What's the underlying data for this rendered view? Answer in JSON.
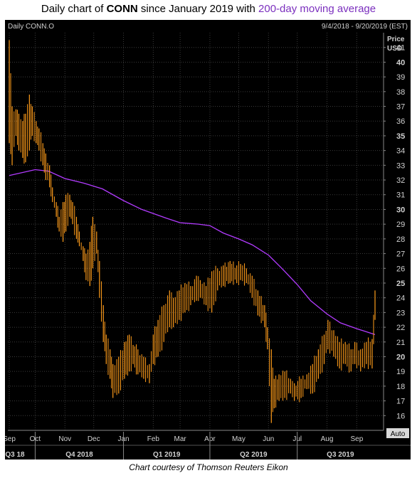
{
  "header": {
    "prefix": "Daily chart of ",
    "ticker": "CONN",
    "middle": " since January 2019 with ",
    "ma_text": "200-day moving average"
  },
  "footer": {
    "caption": "Chart courtesy of Thomson Reuters Eikon"
  },
  "colors": {
    "price": "#ff9c1a",
    "moving_average": "#b23bff",
    "background": "#000000",
    "grid": "#3a3a3a",
    "text": "#c8c8c8"
  },
  "chart_data": {
    "type": "line",
    "instrument": "Daily CONN.O",
    "date_range": "9/4/2018 - 9/20/2019 (EST)",
    "ylabel": "Price",
    "yunit": "USD",
    "scale_button": "Auto",
    "ylim": [
      15,
      42
    ],
    "y_ticks": [
      16,
      17,
      18,
      19,
      20,
      21,
      22,
      23,
      24,
      25,
      26,
      27,
      28,
      29,
      30,
      31,
      32,
      33,
      34,
      35,
      36,
      37,
      38,
      39,
      40,
      41
    ],
    "month_ticks": [
      "Sep",
      "Oct",
      "Nov",
      "Dec",
      "Jan",
      "Feb",
      "Mar",
      "Apr",
      "May",
      "Jun",
      "Jul",
      "Aug",
      "Sep"
    ],
    "quarter_ticks": [
      "Q3 18",
      "Q4 2018",
      "Q1 2019",
      "Q2 2019",
      "Q3 2019"
    ],
    "grid": true,
    "series": [
      {
        "name": "CONN.O",
        "style": "daily high-low bars",
        "x": [
          "2018-09-04",
          "2018-09-07",
          "2018-09-11",
          "2018-09-14",
          "2018-09-18",
          "2018-09-21",
          "2018-09-25",
          "2018-09-28",
          "2018-10-02",
          "2018-10-05",
          "2018-10-09",
          "2018-10-12",
          "2018-10-16",
          "2018-10-19",
          "2018-10-23",
          "2018-10-26",
          "2018-10-30",
          "2018-11-02",
          "2018-11-06",
          "2018-11-09",
          "2018-11-13",
          "2018-11-16",
          "2018-11-20",
          "2018-11-23",
          "2018-11-27",
          "2018-11-30",
          "2018-12-04",
          "2018-12-07",
          "2018-12-11",
          "2018-12-14",
          "2018-12-18",
          "2018-12-21",
          "2018-12-27",
          "2019-01-02",
          "2019-01-07",
          "2019-01-11",
          "2019-01-16",
          "2019-01-22",
          "2019-01-28",
          "2019-02-01",
          "2019-02-06",
          "2019-02-12",
          "2019-02-18",
          "2019-02-22",
          "2019-02-28",
          "2019-03-06",
          "2019-03-12",
          "2019-03-18",
          "2019-03-22",
          "2019-03-28",
          "2019-04-03",
          "2019-04-09",
          "2019-04-15",
          "2019-04-22",
          "2019-04-29",
          "2019-05-03",
          "2019-05-09",
          "2019-05-15",
          "2019-05-21",
          "2019-05-28",
          "2019-05-31",
          "2019-06-04",
          "2019-06-07",
          "2019-06-12",
          "2019-06-18",
          "2019-06-24",
          "2019-06-28",
          "2019-07-05",
          "2019-07-11",
          "2019-07-17",
          "2019-07-23",
          "2019-07-29",
          "2019-08-02",
          "2019-08-08",
          "2019-08-14",
          "2019-08-20",
          "2019-08-26",
          "2019-08-30",
          "2019-09-05",
          "2019-09-11",
          "2019-09-17",
          "2019-09-20"
        ],
        "low": [
          34.5,
          33.0,
          35.0,
          34.0,
          33.5,
          33.2,
          34.0,
          35.0,
          34.5,
          34.0,
          33.0,
          32.0,
          31.5,
          30.5,
          29.5,
          28.5,
          27.8,
          28.5,
          29.5,
          29.0,
          28.0,
          27.5,
          26.5,
          25.2,
          24.8,
          26.0,
          27.0,
          24.0,
          21.0,
          19.5,
          18.5,
          17.2,
          17.5,
          18.5,
          19.0,
          19.5,
          18.8,
          18.5,
          18.2,
          19.5,
          20.0,
          21.0,
          22.0,
          22.0,
          22.5,
          23.0,
          23.5,
          23.8,
          24.0,
          23.5,
          23.0,
          24.5,
          24.8,
          25.0,
          25.0,
          25.2,
          25.0,
          24.0,
          22.8,
          22.0,
          20.5,
          15.5,
          16.5,
          17.0,
          17.2,
          17.5,
          17.0,
          17.2,
          17.8,
          17.5,
          18.5,
          19.5,
          20.5,
          20.0,
          19.2,
          19.5,
          19.0,
          19.5,
          19.0,
          19.5,
          19.2,
          22.5
        ],
        "high": [
          41.5,
          37.0,
          36.8,
          36.5,
          36.0,
          36.5,
          37.8,
          37.0,
          36.0,
          35.5,
          34.5,
          33.8,
          33.0,
          31.5,
          30.5,
          29.5,
          30.5,
          31.0,
          31.0,
          30.5,
          29.5,
          28.5,
          27.5,
          27.0,
          27.8,
          29.5,
          28.5,
          26.5,
          23.5,
          21.5,
          20.5,
          19.5,
          20.0,
          21.0,
          21.5,
          20.8,
          20.5,
          20.0,
          19.5,
          21.5,
          22.5,
          23.5,
          24.5,
          24.0,
          24.5,
          25.0,
          24.8,
          25.5,
          25.2,
          24.8,
          25.8,
          26.0,
          26.2,
          26.5,
          26.2,
          26.3,
          26.0,
          25.5,
          24.5,
          23.5,
          22.0,
          20.5,
          18.5,
          18.8,
          19.0,
          18.5,
          18.2,
          18.5,
          18.8,
          19.5,
          20.5,
          21.5,
          22.5,
          21.8,
          21.0,
          21.0,
          20.5,
          21.0,
          20.5,
          21.0,
          21.2,
          24.5
        ]
      },
      {
        "name": "200-day moving average",
        "x": [
          "2018-09-04",
          "2018-10-01",
          "2018-10-15",
          "2018-11-01",
          "2018-11-20",
          "2018-12-10",
          "2019-01-01",
          "2019-01-20",
          "2019-02-15",
          "2019-03-01",
          "2019-03-20",
          "2019-04-01",
          "2019-04-15",
          "2019-05-01",
          "2019-05-15",
          "2019-06-01",
          "2019-06-15",
          "2019-07-01",
          "2019-07-15",
          "2019-08-01",
          "2019-08-15",
          "2019-09-01",
          "2019-09-20"
        ],
        "values": [
          32.3,
          32.7,
          32.6,
          32.1,
          31.8,
          31.4,
          30.6,
          30.0,
          29.4,
          29.1,
          29.0,
          28.9,
          28.4,
          28.0,
          27.6,
          26.9,
          26.0,
          24.9,
          23.8,
          22.9,
          22.3,
          21.9,
          21.5
        ]
      }
    ]
  }
}
